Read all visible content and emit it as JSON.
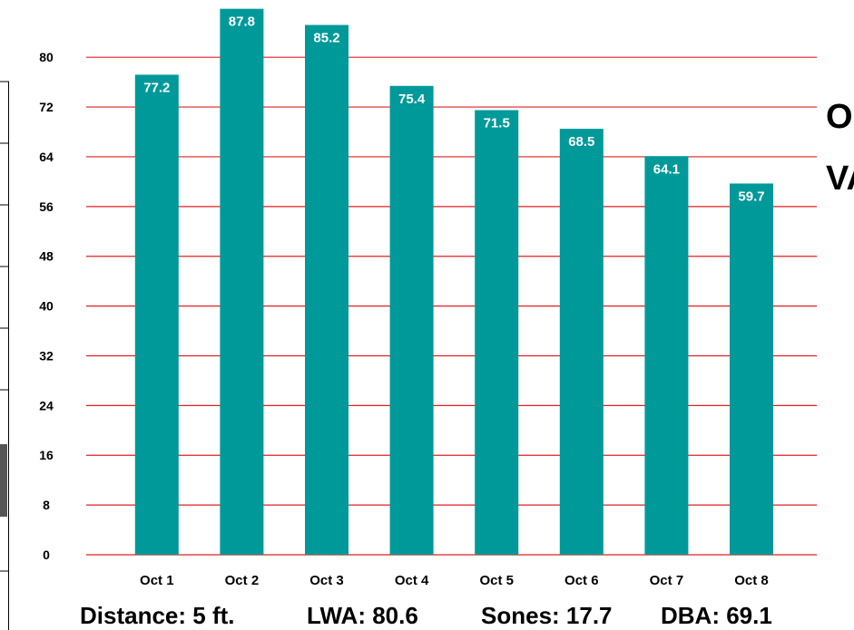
{
  "chart_data": {
    "type": "bar",
    "categories": [
      "Oct 1",
      "Oct 2",
      "Oct 3",
      "Oct 4",
      "Oct 5",
      "Oct 6",
      "Oct 7",
      "Oct 8"
    ],
    "values": [
      77.2,
      87.8,
      85.2,
      75.4,
      71.5,
      68.5,
      64.1,
      59.7
    ],
    "data_labels": [
      "77.2",
      "87.8",
      "85.2",
      "75.4",
      "71.5",
      "68.5",
      "64.1",
      "59.7"
    ],
    "yticks": [
      0,
      8,
      16,
      24,
      32,
      40,
      48,
      56,
      64,
      72,
      80
    ],
    "ylim": [
      0,
      88
    ],
    "grid": true,
    "title": "",
    "xlabel": "",
    "ylabel": "",
    "bar_color": "#009999",
    "grid_color": "#e02020"
  },
  "side_title": "OCT\n\nVALUES",
  "footer": {
    "distance": "Distance: 5 ft.",
    "lwa": "LWA: 80.6",
    "sones": "Sones: 17.7",
    "dba": "DBA: 69.1"
  }
}
